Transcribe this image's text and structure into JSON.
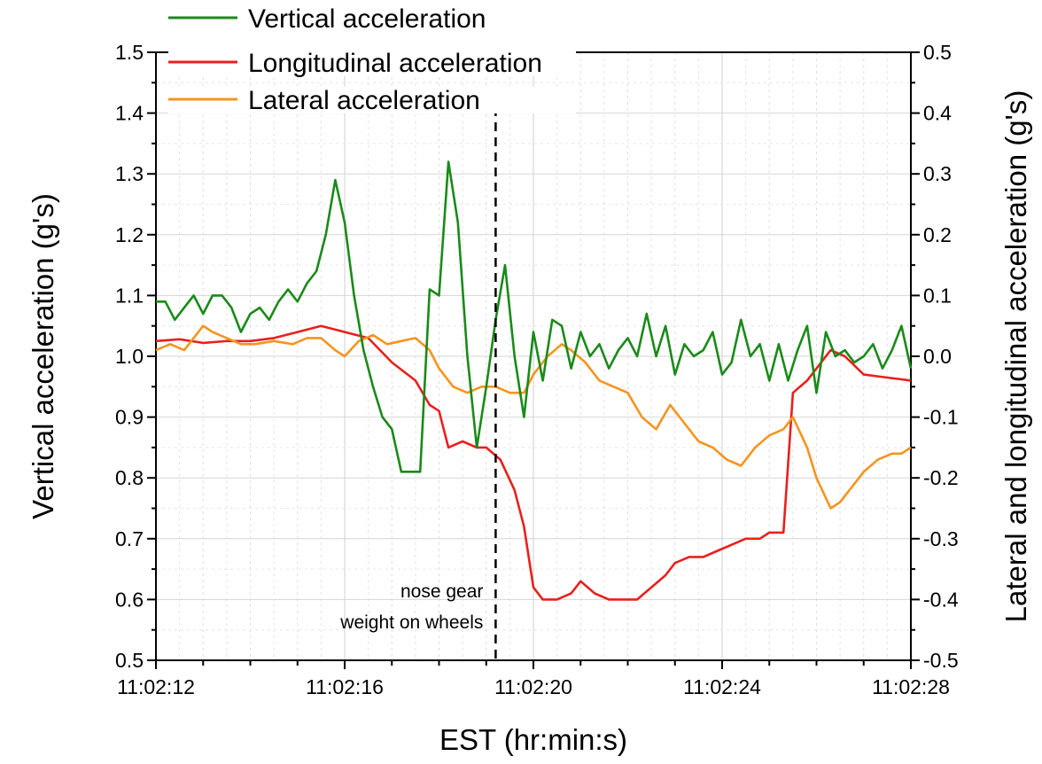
{
  "chart_data": {
    "type": "line",
    "title": "",
    "xlabel": "EST (hr:min:s)",
    "ylabel": "Vertical acceleration (g's)",
    "ylabel_right": "Lateral and longitudinal acceleration (g's)",
    "x_ticks": [
      "11:02:12",
      "11:02:16",
      "11:02:20",
      "11:02:24",
      "11:02:28"
    ],
    "x_range_seconds_past_11_02": [
      12,
      28
    ],
    "y_ticks": [
      "0.5",
      "0.6",
      "0.7",
      "0.8",
      "0.9",
      "1.0",
      "1.1",
      "1.2",
      "1.3",
      "1.4",
      "1.5"
    ],
    "ylim": [
      0.5,
      1.5
    ],
    "y2_ticks": [
      "-0.5",
      "-0.4",
      "-0.3",
      "-0.2",
      "-0.1",
      "0.0",
      "0.1",
      "0.2",
      "0.3",
      "0.4",
      "0.5"
    ],
    "y2lim": [
      -0.5,
      0.5
    ],
    "grid": true,
    "legend_position": "top-left",
    "annotation": {
      "lines": [
        "nose gear",
        "weight on wheels"
      ],
      "x": 19.2
    },
    "series": [
      {
        "name": "Vertical acceleration",
        "axis": "left",
        "color": "#1a8a1a",
        "x": [
          12.0,
          12.2,
          12.4,
          12.6,
          12.8,
          13.0,
          13.2,
          13.4,
          13.6,
          13.8,
          14.0,
          14.2,
          14.4,
          14.6,
          14.8,
          15.0,
          15.2,
          15.4,
          15.6,
          15.8,
          16.0,
          16.2,
          16.4,
          16.6,
          16.8,
          17.0,
          17.2,
          17.4,
          17.6,
          17.8,
          18.0,
          18.2,
          18.4,
          18.6,
          18.8,
          19.0,
          19.2,
          19.4,
          19.6,
          19.8,
          20.0,
          20.2,
          20.4,
          20.6,
          20.8,
          21.0,
          21.2,
          21.4,
          21.6,
          21.8,
          22.0,
          22.2,
          22.4,
          22.6,
          22.8,
          23.0,
          23.2,
          23.4,
          23.6,
          23.8,
          24.0,
          24.2,
          24.4,
          24.6,
          24.8,
          25.0,
          25.2,
          25.4,
          25.6,
          25.8,
          26.0,
          26.2,
          26.4,
          26.6,
          26.8,
          27.0,
          27.2,
          27.4,
          27.6,
          27.8,
          28.0
        ],
        "values": [
          1.09,
          1.09,
          1.06,
          1.08,
          1.1,
          1.07,
          1.1,
          1.1,
          1.08,
          1.04,
          1.07,
          1.08,
          1.06,
          1.09,
          1.11,
          1.09,
          1.12,
          1.14,
          1.2,
          1.29,
          1.22,
          1.1,
          1.01,
          0.95,
          0.9,
          0.88,
          0.81,
          0.81,
          0.81,
          1.11,
          1.1,
          1.32,
          1.22,
          1.0,
          0.85,
          0.95,
          1.06,
          1.15,
          1.0,
          0.9,
          1.04,
          0.96,
          1.06,
          1.05,
          0.98,
          1.04,
          1.0,
          1.02,
          0.98,
          1.01,
          1.03,
          1.0,
          1.07,
          1.0,
          1.05,
          0.97,
          1.02,
          1.0,
          1.01,
          1.04,
          0.97,
          0.99,
          1.06,
          1.0,
          1.02,
          0.96,
          1.02,
          0.96,
          1.01,
          1.05,
          0.94,
          1.04,
          1.0,
          1.01,
          0.99,
          1.0,
          1.02,
          0.98,
          1.01,
          1.05,
          0.98
        ],
        "x_values_note_unused": ""
      },
      {
        "name": "Longitudinal acceleration",
        "axis": "right",
        "color": "#e8201c",
        "x": [
          12.0,
          12.5,
          13.0,
          13.5,
          14.0,
          14.5,
          15.0,
          15.5,
          16.0,
          16.5,
          17.0,
          17.5,
          17.8,
          18.0,
          18.2,
          18.5,
          18.8,
          19.0,
          19.3,
          19.6,
          19.8,
          20.0,
          20.2,
          20.5,
          20.8,
          21.0,
          21.3,
          21.6,
          21.9,
          22.2,
          22.5,
          22.8,
          23.0,
          23.3,
          23.6,
          23.9,
          24.2,
          24.5,
          24.8,
          25.0,
          25.2,
          25.3,
          25.5,
          25.8,
          26.0,
          26.3,
          26.6,
          27.0,
          27.5,
          28.0
        ],
        "values": [
          0.025,
          0.028,
          0.022,
          0.025,
          0.025,
          0.03,
          0.04,
          0.05,
          0.04,
          0.03,
          -0.01,
          -0.04,
          -0.08,
          -0.09,
          -0.15,
          -0.14,
          -0.15,
          -0.15,
          -0.17,
          -0.22,
          -0.28,
          -0.38,
          -0.4,
          -0.4,
          -0.39,
          -0.37,
          -0.39,
          -0.4,
          -0.4,
          -0.4,
          -0.38,
          -0.36,
          -0.34,
          -0.33,
          -0.33,
          -0.32,
          -0.31,
          -0.3,
          -0.3,
          -0.29,
          -0.29,
          -0.29,
          -0.06,
          -0.04,
          -0.02,
          0.01,
          0.0,
          -0.03,
          -0.035,
          -0.04
        ]
      },
      {
        "name": "Lateral acceleration",
        "axis": "right",
        "color": "#f5941e",
        "x": [
          12.0,
          12.3,
          12.6,
          13.0,
          13.2,
          13.5,
          13.8,
          14.1,
          14.5,
          14.9,
          15.2,
          15.5,
          15.8,
          16.0,
          16.3,
          16.6,
          16.9,
          17.2,
          17.5,
          17.8,
          18.0,
          18.3,
          18.6,
          18.9,
          19.2,
          19.5,
          19.8,
          20.0,
          20.3,
          20.6,
          20.8,
          21.1,
          21.4,
          21.7,
          22.0,
          22.3,
          22.6,
          22.9,
          23.2,
          23.5,
          23.8,
          24.1,
          24.4,
          24.7,
          25.0,
          25.3,
          25.5,
          25.8,
          26.0,
          26.3,
          26.5,
          26.8,
          27.0,
          27.3,
          27.6,
          27.8,
          28.0
        ],
        "values": [
          0.01,
          0.02,
          0.01,
          0.05,
          0.04,
          0.03,
          0.02,
          0.02,
          0.025,
          0.02,
          0.03,
          0.03,
          0.01,
          0.0,
          0.025,
          0.035,
          0.02,
          0.025,
          0.03,
          0.01,
          -0.02,
          -0.05,
          -0.06,
          -0.05,
          -0.05,
          -0.06,
          -0.06,
          -0.03,
          0.0,
          0.02,
          0.01,
          -0.01,
          -0.04,
          -0.05,
          -0.06,
          -0.1,
          -0.12,
          -0.08,
          -0.11,
          -0.14,
          -0.15,
          -0.17,
          -0.18,
          -0.15,
          -0.13,
          -0.12,
          -0.1,
          -0.15,
          -0.2,
          -0.25,
          -0.24,
          -0.21,
          -0.19,
          -0.17,
          -0.16,
          -0.16,
          -0.15
        ]
      }
    ]
  }
}
